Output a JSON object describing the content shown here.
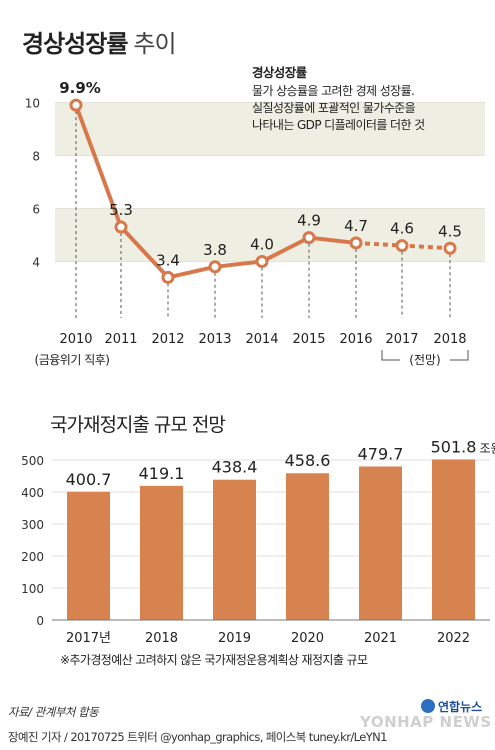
{
  "header": {
    "title": "경상성장률",
    "subtitle": "추이"
  },
  "note": {
    "title": "경상성장률",
    "lines": [
      "물가 상승률을 고려한 경제 성장률.",
      "실질성장률에 포괄적인 물가수준을",
      "나타내는 GDP 디플레이터를 더한 것"
    ]
  },
  "chart2_title": "국가재정지출 규모 전망",
  "footnote": "※추가경정예산 고려하지 않은 국가재정운용계획상 재정지출 규모",
  "source": "자료/ 관계부처 합동",
  "credit": "장예진 기자 / 20170725 트위터 @yonhap_graphics, 페이스북 tuney.kr/LeYN1",
  "logo": {
    "name": "연합뉴스",
    "latin": "YONHAP NEWS"
  },
  "colors": {
    "line": "#d8784a",
    "bar": "#d6834f",
    "band": "#eeeee2",
    "grid": "#e2e2da"
  },
  "chart_data": [
    {
      "type": "line",
      "title": "경상성장률 추이",
      "x": [
        "2010",
        "2011",
        "2012",
        "2013",
        "2014",
        "2015",
        "2016",
        "2017",
        "2018"
      ],
      "values": [
        9.9,
        5.3,
        3.4,
        3.8,
        4.0,
        4.9,
        4.7,
        4.6,
        4.5
      ],
      "labels": [
        "9.9%",
        "5.3",
        "3.4",
        "3.8",
        "4.0",
        "4.9",
        "4.7",
        "4.6",
        "4.5"
      ],
      "ylim": [
        3,
        11
      ],
      "yticks": [
        "4",
        "6",
        "8",
        "10"
      ],
      "projection_from_index": 6,
      "annotations": {
        "2010": "(금융위기 직후)",
        "projection": "(전망)"
      }
    },
    {
      "type": "bar",
      "title": "국가재정지출 규모 전망",
      "categories": [
        "2017년",
        "2018",
        "2019",
        "2020",
        "2021",
        "2022"
      ],
      "values": [
        400.7,
        419.1,
        438.4,
        458.6,
        479.7,
        501.8
      ],
      "labels": [
        "400.7",
        "419.1",
        "438.4",
        "458.6",
        "479.7",
        "501.8"
      ],
      "unit": "조원",
      "ylim": [
        0,
        500
      ],
      "yticks": [
        "0",
        "100",
        "200",
        "300",
        "400",
        "500"
      ]
    }
  ]
}
